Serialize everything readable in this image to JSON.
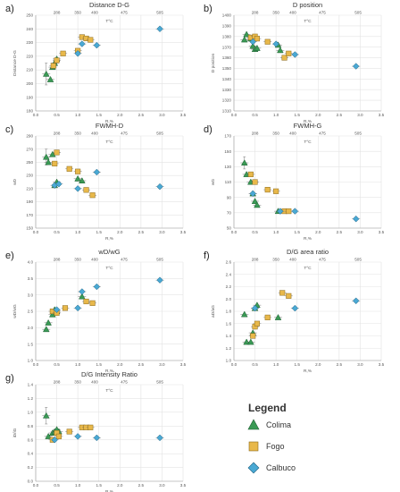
{
  "colors": {
    "colima": "#3a9a55",
    "fogo": "#e8b84a",
    "calbuco": "#4aa9d4",
    "grid": "#e3e3e3",
    "text": "#333333"
  },
  "legend": {
    "title": "Legend",
    "items": [
      {
        "name": "Colima",
        "marker": "triangle",
        "color": "#3a9a55"
      },
      {
        "name": "Fogo",
        "marker": "square",
        "color": "#e8b84a"
      },
      {
        "name": "Calbuco",
        "marker": "diamond",
        "color": "#4aa9d4"
      }
    ]
  },
  "chart_data": [
    {
      "id": "a",
      "panel_label": "a)",
      "type": "scatter",
      "title": "Distance D-G",
      "xlabel": "R,%",
      "ylabel": "Distance D-G",
      "top_axis_label": "T°C",
      "top_ticks": [
        {
          "x": 0.5,
          "label": "288"
        },
        {
          "x": 1.0,
          "label": "350"
        },
        {
          "x": 1.4,
          "label": "400"
        },
        {
          "x": 2.1,
          "label": "475"
        },
        {
          "x": 2.95,
          "label": "505"
        }
      ],
      "xlim": [
        0,
        3.5
      ],
      "xticks": [
        0,
        0.5,
        1,
        1.5,
        2,
        2.5,
        3,
        3.5
      ],
      "ylim": [
        180,
        250
      ],
      "yticks": [
        180,
        190,
        200,
        210,
        220,
        230,
        240,
        250
      ],
      "series": [
        {
          "name": "Colima",
          "marker": "triangle",
          "points": [
            {
              "x": 0.25,
              "y": 207,
              "err": 8
            },
            {
              "x": 0.35,
              "y": 203
            },
            {
              "x": 0.4,
              "y": 212
            },
            {
              "x": 0.45,
              "y": 215
            },
            {
              "x": 0.5,
              "y": 218
            }
          ]
        },
        {
          "name": "Fogo",
          "marker": "square",
          "points": [
            {
              "x": 0.42,
              "y": 213
            },
            {
              "x": 0.5,
              "y": 217
            },
            {
              "x": 0.65,
              "y": 222
            },
            {
              "x": 1.0,
              "y": 224
            },
            {
              "x": 1.1,
              "y": 234
            },
            {
              "x": 1.2,
              "y": 233
            },
            {
              "x": 1.3,
              "y": 232
            }
          ]
        },
        {
          "name": "Calbuco",
          "marker": "diamond",
          "points": [
            {
              "x": 1.0,
              "y": 222
            },
            {
              "x": 1.1,
              "y": 229
            },
            {
              "x": 1.45,
              "y": 228
            },
            {
              "x": 2.95,
              "y": 240
            }
          ]
        }
      ]
    },
    {
      "id": "b",
      "panel_label": "b)",
      "type": "scatter",
      "title": "D position",
      "xlabel": "R,%",
      "ylabel": "D position",
      "top_axis_label": "T°C",
      "top_ticks": [
        {
          "x": 0.5,
          "label": "288"
        },
        {
          "x": 1.0,
          "label": "350"
        },
        {
          "x": 1.4,
          "label": "400"
        },
        {
          "x": 2.1,
          "label": "475"
        },
        {
          "x": 2.95,
          "label": "505"
        }
      ],
      "xlim": [
        0,
        3.5
      ],
      "xticks": [
        0,
        0.5,
        1,
        1.5,
        2,
        2.5,
        3,
        3.5
      ],
      "ylim": [
        1310,
        1400
      ],
      "yticks": [
        1310,
        1320,
        1330,
        1340,
        1350,
        1360,
        1370,
        1380,
        1390,
        1400
      ],
      "series": [
        {
          "name": "Colima",
          "marker": "triangle",
          "points": [
            {
              "x": 0.25,
              "y": 1377
            },
            {
              "x": 0.3,
              "y": 1382
            },
            {
              "x": 0.4,
              "y": 1378
            },
            {
              "x": 0.45,
              "y": 1371
            },
            {
              "x": 0.5,
              "y": 1368
            },
            {
              "x": 0.55,
              "y": 1369
            },
            {
              "x": 1.05,
              "y": 1372
            },
            {
              "x": 1.1,
              "y": 1367
            }
          ]
        },
        {
          "name": "Fogo",
          "marker": "square",
          "points": [
            {
              "x": 0.4,
              "y": 1379
            },
            {
              "x": 0.5,
              "y": 1380
            },
            {
              "x": 0.55,
              "y": 1378
            },
            {
              "x": 0.8,
              "y": 1375
            },
            {
              "x": 1.2,
              "y": 1360
            },
            {
              "x": 1.3,
              "y": 1364
            }
          ]
        },
        {
          "name": "Calbuco",
          "marker": "diamond",
          "points": [
            {
              "x": 0.45,
              "y": 1375
            },
            {
              "x": 1.0,
              "y": 1373
            },
            {
              "x": 1.45,
              "y": 1363
            },
            {
              "x": 2.9,
              "y": 1352
            }
          ]
        }
      ]
    },
    {
      "id": "c",
      "panel_label": "c)",
      "type": "scatter",
      "title": "FWMH-D",
      "xlabel": "R,%",
      "ylabel": "wD",
      "top_axis_label": "T°C",
      "top_ticks": [
        {
          "x": 0.5,
          "label": "288"
        },
        {
          "x": 1.0,
          "label": "350"
        },
        {
          "x": 1.4,
          "label": "400"
        },
        {
          "x": 2.1,
          "label": "475"
        },
        {
          "x": 2.95,
          "label": "505"
        }
      ],
      "xlim": [
        0,
        3.5
      ],
      "xticks": [
        0,
        0.5,
        1,
        1.5,
        2,
        2.5,
        3,
        3.5
      ],
      "ylim": [
        150,
        290
      ],
      "yticks": [
        150,
        170,
        190,
        210,
        230,
        250,
        270,
        290
      ],
      "series": [
        {
          "name": "Colima",
          "marker": "triangle",
          "points": [
            {
              "x": 0.25,
              "y": 258,
              "err": 12
            },
            {
              "x": 0.3,
              "y": 250
            },
            {
              "x": 0.4,
              "y": 262
            },
            {
              "x": 0.45,
              "y": 215
            },
            {
              "x": 0.5,
              "y": 220
            },
            {
              "x": 1.0,
              "y": 225
            },
            {
              "x": 1.1,
              "y": 222
            }
          ]
        },
        {
          "name": "Fogo",
          "marker": "square",
          "points": [
            {
              "x": 0.45,
              "y": 248
            },
            {
              "x": 0.5,
              "y": 265
            },
            {
              "x": 0.8,
              "y": 240
            },
            {
              "x": 1.0,
              "y": 236
            },
            {
              "x": 1.2,
              "y": 208
            },
            {
              "x": 1.35,
              "y": 200
            }
          ]
        },
        {
          "name": "Calbuco",
          "marker": "diamond",
          "points": [
            {
              "x": 0.45,
              "y": 215
            },
            {
              "x": 0.55,
              "y": 217
            },
            {
              "x": 1.0,
              "y": 210
            },
            {
              "x": 1.45,
              "y": 235
            },
            {
              "x": 2.95,
              "y": 213
            }
          ]
        }
      ]
    },
    {
      "id": "d",
      "panel_label": "d)",
      "type": "scatter",
      "title": "FWMH-G",
      "xlabel": "R,%",
      "ylabel": "wG",
      "top_axis_label": "T°C",
      "top_ticks": [
        {
          "x": 0.5,
          "label": "288"
        },
        {
          "x": 1.0,
          "label": "350"
        },
        {
          "x": 1.4,
          "label": "400"
        },
        {
          "x": 2.1,
          "label": "475"
        },
        {
          "x": 2.95,
          "label": "505"
        }
      ],
      "xlim": [
        0,
        3.5
      ],
      "xticks": [
        0,
        0.5,
        1,
        1.5,
        2,
        2.5,
        3,
        3.5
      ],
      "ylim": [
        50,
        170
      ],
      "yticks": [
        50,
        70,
        90,
        110,
        130,
        150,
        170
      ],
      "series": [
        {
          "name": "Colima",
          "marker": "triangle",
          "points": [
            {
              "x": 0.25,
              "y": 135,
              "err": 8
            },
            {
              "x": 0.3,
              "y": 120
            },
            {
              "x": 0.4,
              "y": 110
            },
            {
              "x": 0.45,
              "y": 95
            },
            {
              "x": 0.5,
              "y": 85
            },
            {
              "x": 0.55,
              "y": 80
            },
            {
              "x": 1.05,
              "y": 72
            }
          ]
        },
        {
          "name": "Fogo",
          "marker": "square",
          "points": [
            {
              "x": 0.4,
              "y": 120
            },
            {
              "x": 0.5,
              "y": 110
            },
            {
              "x": 0.8,
              "y": 100
            },
            {
              "x": 1.0,
              "y": 98
            },
            {
              "x": 1.2,
              "y": 72
            },
            {
              "x": 1.3,
              "y": 72
            }
          ]
        },
        {
          "name": "Calbuco",
          "marker": "diamond",
          "points": [
            {
              "x": 0.45,
              "y": 95
            },
            {
              "x": 1.1,
              "y": 72
            },
            {
              "x": 1.45,
              "y": 72
            },
            {
              "x": 2.9,
              "y": 62
            }
          ]
        }
      ]
    },
    {
      "id": "e",
      "panel_label": "e)",
      "type": "scatter",
      "title": "wD/wG",
      "xlabel": "R,%",
      "ylabel": "wD/wG",
      "top_axis_label": "T°C",
      "top_ticks": [
        {
          "x": 0.5,
          "label": "288"
        },
        {
          "x": 1.0,
          "label": "350"
        },
        {
          "x": 1.4,
          "label": "400"
        },
        {
          "x": 2.1,
          "label": "475"
        },
        {
          "x": 2.95,
          "label": "505"
        }
      ],
      "xlim": [
        0,
        3.5
      ],
      "xticks": [
        0,
        0.5,
        1,
        1.5,
        2,
        2.5,
        3,
        3.5
      ],
      "ylim": [
        1.0,
        4.0
      ],
      "yticks": [
        1.0,
        1.5,
        2.0,
        2.5,
        3.0,
        3.5,
        4.0
      ],
      "series": [
        {
          "name": "Colima",
          "marker": "triangle",
          "points": [
            {
              "x": 0.25,
              "y": 1.95
            },
            {
              "x": 0.3,
              "y": 2.15
            },
            {
              "x": 0.4,
              "y": 2.4
            },
            {
              "x": 0.45,
              "y": 2.55
            },
            {
              "x": 0.5,
              "y": 2.5
            },
            {
              "x": 1.1,
              "y": 2.95
            }
          ]
        },
        {
          "name": "Fogo",
          "marker": "square",
          "points": [
            {
              "x": 0.4,
              "y": 2.5
            },
            {
              "x": 0.5,
              "y": 2.45
            },
            {
              "x": 0.7,
              "y": 2.6
            },
            {
              "x": 1.2,
              "y": 2.8
            },
            {
              "x": 1.35,
              "y": 2.75
            }
          ]
        },
        {
          "name": "Calbuco",
          "marker": "diamond",
          "points": [
            {
              "x": 0.5,
              "y": 2.55
            },
            {
              "x": 1.0,
              "y": 2.6
            },
            {
              "x": 1.1,
              "y": 3.1
            },
            {
              "x": 1.45,
              "y": 3.25
            },
            {
              "x": 2.95,
              "y": 3.45
            }
          ]
        }
      ]
    },
    {
      "id": "f",
      "panel_label": "f)",
      "type": "scatter",
      "title": "D/G area ratio",
      "xlabel": "R,%",
      "ylabel": "aD/aG",
      "top_axis_label": "T°C",
      "top_ticks": [
        {
          "x": 0.5,
          "label": "288"
        },
        {
          "x": 1.0,
          "label": "350"
        },
        {
          "x": 1.4,
          "label": "400"
        },
        {
          "x": 2.1,
          "label": "475"
        },
        {
          "x": 2.95,
          "label": "505"
        }
      ],
      "xlim": [
        0,
        3.5
      ],
      "xticks": [
        0,
        0.5,
        1,
        1.5,
        2,
        2.5,
        3,
        3.5
      ],
      "ylim": [
        1.0,
        2.6
      ],
      "yticks": [
        1.0,
        1.2,
        1.4,
        1.6,
        1.8,
        2.0,
        2.2,
        2.4,
        2.6
      ],
      "series": [
        {
          "name": "Colima",
          "marker": "triangle",
          "points": [
            {
              "x": 0.25,
              "y": 1.75
            },
            {
              "x": 0.3,
              "y": 1.3
            },
            {
              "x": 0.4,
              "y": 1.3
            },
            {
              "x": 0.45,
              "y": 1.45
            },
            {
              "x": 0.5,
              "y": 1.85
            },
            {
              "x": 0.55,
              "y": 1.9
            },
            {
              "x": 1.05,
              "y": 1.7
            }
          ]
        },
        {
          "name": "Fogo",
          "marker": "square",
          "points": [
            {
              "x": 0.45,
              "y": 1.4
            },
            {
              "x": 0.5,
              "y": 1.55
            },
            {
              "x": 0.55,
              "y": 1.6
            },
            {
              "x": 0.8,
              "y": 1.7
            },
            {
              "x": 1.15,
              "y": 2.1
            },
            {
              "x": 1.3,
              "y": 2.05
            }
          ]
        },
        {
          "name": "Calbuco",
          "marker": "diamond",
          "points": [
            {
              "x": 0.5,
              "y": 1.85
            },
            {
              "x": 1.45,
              "y": 1.85
            },
            {
              "x": 2.9,
              "y": 1.97
            }
          ]
        }
      ]
    },
    {
      "id": "g",
      "panel_label": "g)",
      "type": "scatter",
      "title": "D/G Intensity Ratio",
      "xlabel": "R,%",
      "ylabel": "iD/iG",
      "top_axis_label": "T°C",
      "top_ticks": [
        {
          "x": 0.5,
          "label": "288"
        },
        {
          "x": 1.0,
          "label": "350"
        },
        {
          "x": 1.4,
          "label": "400"
        },
        {
          "x": 2.1,
          "label": "475"
        },
        {
          "x": 2.95,
          "label": "505"
        }
      ],
      "xlim": [
        0,
        3.5
      ],
      "xticks": [
        0,
        0.5,
        1,
        1.5,
        2,
        2.5,
        3,
        3.5
      ],
      "ylim": [
        0,
        1.4
      ],
      "yticks": [
        0,
        0.2,
        0.4,
        0.6,
        0.8,
        1.0,
        1.2,
        1.4
      ],
      "series": [
        {
          "name": "Colima",
          "marker": "triangle",
          "points": [
            {
              "x": 0.25,
              "y": 0.95,
              "err": 0.12
            },
            {
              "x": 0.3,
              "y": 0.65
            },
            {
              "x": 0.4,
              "y": 0.7
            },
            {
              "x": 0.45,
              "y": 0.72
            },
            {
              "x": 0.5,
              "y": 0.75
            },
            {
              "x": 0.55,
              "y": 0.72
            }
          ]
        },
        {
          "name": "Fogo",
          "marker": "square",
          "points": [
            {
              "x": 0.4,
              "y": 0.6
            },
            {
              "x": 0.5,
              "y": 0.7
            },
            {
              "x": 0.55,
              "y": 0.65
            },
            {
              "x": 0.8,
              "y": 0.72
            },
            {
              "x": 1.1,
              "y": 0.78
            },
            {
              "x": 1.2,
              "y": 0.78
            },
            {
              "x": 1.3,
              "y": 0.78
            }
          ]
        },
        {
          "name": "Calbuco",
          "marker": "diamond",
          "points": [
            {
              "x": 0.45,
              "y": 0.6
            },
            {
              "x": 1.0,
              "y": 0.65
            },
            {
              "x": 1.45,
              "y": 0.63
            },
            {
              "x": 2.95,
              "y": 0.63
            }
          ]
        }
      ]
    }
  ]
}
